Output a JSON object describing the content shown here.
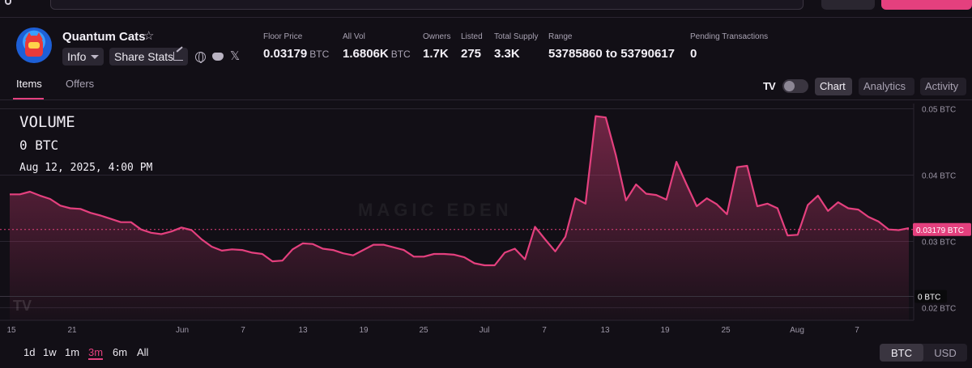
{
  "collection": {
    "name": "Quantum Cats",
    "info_label": "Info",
    "share_label": "Share Stats"
  },
  "stats": [
    {
      "label": "Floor Price",
      "value": "0.03179",
      "unit": "BTC"
    },
    {
      "label": "All Vol",
      "value": "1.6806K",
      "unit": "BTC"
    },
    {
      "label": "Owners",
      "value": "1.7K",
      "unit": ""
    },
    {
      "label": "Listed",
      "value": "275",
      "unit": ""
    },
    {
      "label": "Total Supply",
      "value": "3.3K",
      "unit": ""
    },
    {
      "label": "Range",
      "value": "53785860 to 53790617",
      "unit": ""
    },
    {
      "label": "Pending Transactions",
      "value": "0",
      "unit": ""
    }
  ],
  "tabs": {
    "items": "Items",
    "offers": "Offers"
  },
  "view_buttons": {
    "chart": "Chart",
    "analytics": "Analytics",
    "activity": "Activity"
  },
  "overlay": {
    "title": "VOLUME",
    "value": "0 BTC",
    "date": "Aug 12, 2025, 4:00 PM"
  },
  "watermark": "MAGIC EDEN",
  "tv_mark": "TV",
  "time_ranges": [
    "1d",
    "1w",
    "1m",
    "3m",
    "6m",
    "All"
  ],
  "selected_range": "3m",
  "currency": {
    "btc": "BTC",
    "usd": "USD",
    "selected": "BTC"
  },
  "colors": {
    "accent": "#e4407e",
    "background": "#120f16"
  },
  "chart_data": {
    "type": "area",
    "y_axis_ticks": [
      {
        "value": 0.05,
        "label": "0.05 BTC"
      },
      {
        "value": 0.04,
        "label": "0.04 BTC"
      },
      {
        "value": 0.03,
        "label": "0.03 BTC"
      },
      {
        "value": 0.02,
        "label": "0.02 BTC"
      }
    ],
    "ylim": [
      0.0181,
      0.0508
    ],
    "x_ticks": [
      "15",
      "21",
      "Jun",
      "7",
      "13",
      "19",
      "25",
      "Jul",
      "7",
      "13",
      "19",
      "25",
      "Aug",
      "7"
    ],
    "price_line": {
      "value": 0.03179,
      "label": "0.03179 BTC"
    },
    "volume_line": {
      "value": 0.0217,
      "label": "0 BTC"
    },
    "series": [
      {
        "values": [
          0.0371,
          0.0371,
          0.0375,
          0.0369,
          0.0364,
          0.0354,
          0.035,
          0.0349,
          0.0343,
          0.0339,
          0.0334,
          0.0329,
          0.0329,
          0.0318,
          0.0313,
          0.0311,
          0.0315,
          0.0321,
          0.0317,
          0.0303,
          0.0292,
          0.0286,
          0.0288,
          0.0287,
          0.0283,
          0.0281,
          0.027,
          0.0271,
          0.0288,
          0.0297,
          0.0296,
          0.0289,
          0.0287,
          0.0282,
          0.0279,
          0.0287,
          0.0295,
          0.0295,
          0.0291,
          0.0287,
          0.0277,
          0.0277,
          0.0281,
          0.0281,
          0.028,
          0.0276,
          0.0267,
          0.0264,
          0.0264,
          0.0283,
          0.0289,
          0.0273,
          0.0322,
          0.0303,
          0.0285,
          0.0307,
          0.0365,
          0.0357,
          0.0489,
          0.0487,
          0.043,
          0.0362,
          0.0386,
          0.0372,
          0.037,
          0.0363,
          0.042,
          0.0386,
          0.0353,
          0.0365,
          0.0356,
          0.0341,
          0.0412,
          0.0414,
          0.0353,
          0.0357,
          0.035,
          0.0309,
          0.031,
          0.0355,
          0.0369,
          0.0346,
          0.0359,
          0.035,
          0.0348,
          0.0337,
          0.033,
          0.0318,
          0.0317,
          0.032
        ]
      }
    ]
  }
}
